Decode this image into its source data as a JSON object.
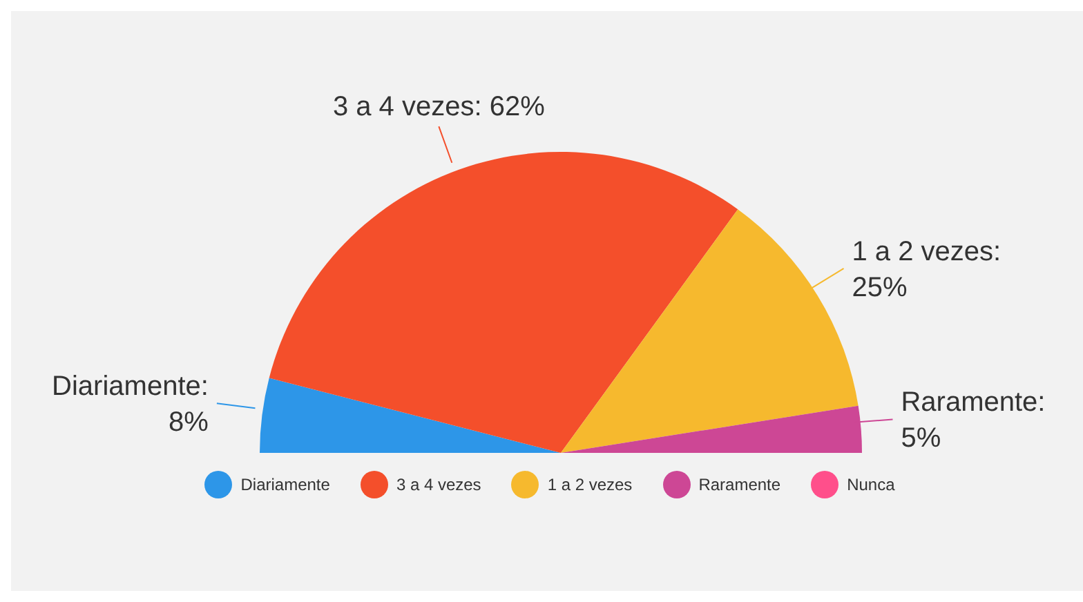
{
  "chart_data": {
    "type": "pie",
    "categories": [
      "Diariamente",
      "3 a 4 vezes",
      "1 a 2 vezes",
      "Raramente",
      "Nunca"
    ],
    "values": [
      8,
      62,
      25,
      5,
      0
    ],
    "colors": [
      "#2d96e8",
      "#f44f2b",
      "#f6b92e",
      "#cd4795",
      "#ff4f8b"
    ],
    "value_labels": [
      "Diariamente: 8%",
      "3 a 4 vezes: 62%",
      "1 a 2 vezes: 25%",
      "Raramente: 5%",
      null
    ],
    "legend": "bottom"
  }
}
